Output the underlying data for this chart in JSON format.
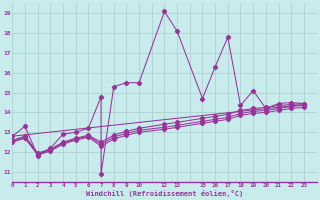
{
  "xlabel": "Windchill (Refroidissement éolien,°C)",
  "bg_color": "#c8ecec",
  "line_color": "#993399",
  "grid_color": "#aacccc",
  "xlim": [
    0,
    24
  ],
  "ylim": [
    10.5,
    19.5
  ],
  "yticks": [
    11,
    12,
    13,
    14,
    15,
    16,
    17,
    18,
    19
  ],
  "xticks": [
    0,
    1,
    2,
    3,
    4,
    5,
    6,
    7,
    8,
    9,
    10,
    12,
    13,
    15,
    16,
    17,
    18,
    19,
    20,
    21,
    22,
    23
  ],
  "xtick_labels": [
    "0",
    "1",
    "2",
    "3",
    "4",
    "5",
    "6",
    "7",
    "8",
    "9",
    "10",
    "12",
    "13",
    "15",
    "16",
    "17",
    "18",
    "19",
    "20",
    "21",
    "22",
    "23"
  ],
  "lines": [
    {
      "x": [
        0,
        1,
        2,
        3,
        4,
        5,
        6,
        7,
        7,
        8,
        9,
        10,
        12,
        13,
        15,
        16,
        17,
        18,
        19,
        20,
        21,
        22,
        23
      ],
      "y": [
        12.8,
        13.3,
        11.8,
        12.2,
        12.9,
        13.0,
        13.2,
        14.8,
        10.9,
        15.3,
        15.5,
        15.5,
        19.1,
        18.1,
        14.7,
        16.3,
        17.8,
        14.35,
        15.1,
        14.2,
        14.45,
        14.5,
        14.45
      ]
    },
    {
      "x": [
        0,
        1,
        2,
        3,
        4,
        5,
        6,
        7,
        8,
        9,
        10,
        12,
        13,
        15,
        16,
        17,
        18,
        19,
        20,
        21,
        22,
        23
      ],
      "y": [
        12.6,
        12.8,
        11.95,
        12.15,
        12.5,
        12.7,
        12.85,
        12.5,
        12.85,
        13.05,
        13.2,
        13.4,
        13.5,
        13.7,
        13.8,
        13.9,
        14.1,
        14.2,
        14.25,
        14.35,
        14.4,
        14.45
      ]
    },
    {
      "x": [
        0,
        1,
        2,
        3,
        4,
        5,
        6,
        7,
        8,
        9,
        10,
        12,
        13,
        15,
        16,
        17,
        18,
        19,
        20,
        21,
        22,
        23
      ],
      "y": [
        12.55,
        12.75,
        11.9,
        12.1,
        12.45,
        12.65,
        12.8,
        12.4,
        12.75,
        12.95,
        13.1,
        13.25,
        13.35,
        13.55,
        13.65,
        13.75,
        13.95,
        14.05,
        14.1,
        14.2,
        14.3,
        14.35
      ]
    },
    {
      "x": [
        0,
        1,
        2,
        3,
        4,
        5,
        6,
        7,
        8,
        9,
        10,
        12,
        13,
        15,
        16,
        17,
        18,
        19,
        20,
        21,
        22,
        23
      ],
      "y": [
        12.5,
        12.7,
        11.85,
        12.05,
        12.4,
        12.6,
        12.75,
        12.3,
        12.65,
        12.85,
        13.0,
        13.15,
        13.25,
        13.45,
        13.55,
        13.65,
        13.85,
        13.95,
        14.0,
        14.1,
        14.2,
        14.25
      ]
    },
    {
      "x": [
        0,
        23
      ],
      "y": [
        12.8,
        14.4
      ]
    }
  ],
  "marker": "D",
  "markersize": 2.2,
  "linewidth": 0.75
}
